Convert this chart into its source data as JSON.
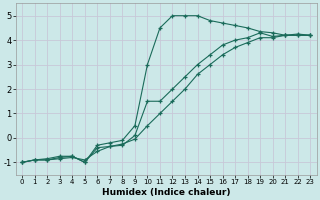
{
  "xlabel": "Humidex (Indice chaleur)",
  "bg_color": "#cce8e8",
  "grid_color": "#b0d0d0",
  "line_color": "#1a6b5a",
  "xlim": [
    -0.5,
    23.5
  ],
  "ylim": [
    -1.5,
    5.5
  ],
  "xticks": [
    0,
    1,
    2,
    3,
    4,
    5,
    6,
    7,
    8,
    9,
    10,
    11,
    12,
    13,
    14,
    15,
    16,
    17,
    18,
    19,
    20,
    21,
    22,
    23
  ],
  "yticks": [
    -1,
    0,
    1,
    2,
    3,
    4,
    5
  ],
  "line1_x": [
    0,
    1,
    2,
    3,
    4,
    5,
    6,
    7,
    8,
    9,
    10,
    11,
    12,
    13,
    14,
    15,
    16,
    17,
    18,
    19,
    20,
    21,
    22,
    23
  ],
  "line1_y": [
    -1.0,
    -0.9,
    -0.9,
    -0.85,
    -0.8,
    -0.9,
    -0.55,
    -0.35,
    -0.25,
    -0.05,
    0.5,
    1.0,
    1.5,
    2.0,
    2.6,
    3.0,
    3.4,
    3.7,
    3.9,
    4.1,
    4.1,
    4.2,
    4.2,
    4.2
  ],
  "line2_x": [
    0,
    1,
    2,
    3,
    4,
    5,
    6,
    7,
    8,
    9,
    10,
    11,
    12,
    13,
    14,
    15,
    16,
    17,
    18,
    19,
    20,
    21,
    22,
    23
  ],
  "line2_y": [
    -1.0,
    -0.9,
    -0.85,
    -0.75,
    -0.75,
    -1.0,
    -0.3,
    -0.2,
    -0.1,
    0.5,
    3.0,
    4.5,
    5.0,
    5.0,
    5.0,
    4.8,
    4.7,
    4.6,
    4.5,
    4.35,
    4.3,
    4.2,
    4.2,
    4.2
  ],
  "line3_x": [
    0,
    1,
    2,
    3,
    4,
    5,
    6,
    7,
    8,
    9,
    10,
    11,
    12,
    13,
    14,
    15,
    16,
    17,
    18,
    19,
    20,
    21,
    22,
    23
  ],
  "line3_y": [
    -1.0,
    -0.9,
    -0.9,
    -0.8,
    -0.75,
    -1.0,
    -0.4,
    -0.35,
    -0.3,
    0.1,
    1.5,
    1.5,
    2.0,
    2.5,
    3.0,
    3.4,
    3.8,
    4.0,
    4.1,
    4.3,
    4.15,
    4.2,
    4.25,
    4.2
  ]
}
